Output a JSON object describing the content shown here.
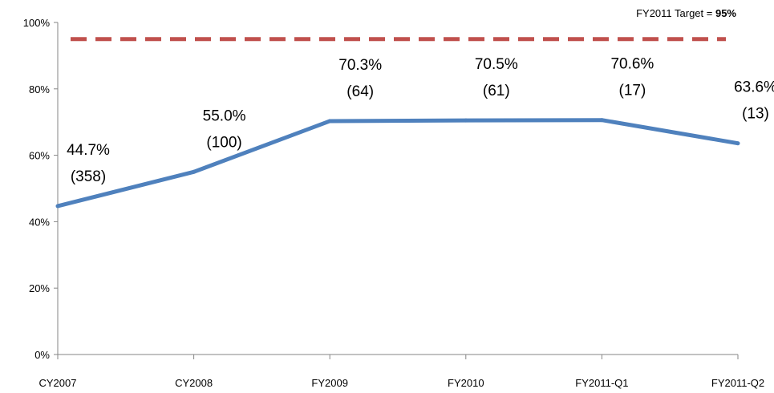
{
  "chart_data": {
    "type": "line",
    "categories": [
      "CY2007",
      "CY2008",
      "FY2009",
      "FY2010",
      "FY2011-Q1",
      "FY2011-Q2"
    ],
    "values": [
      44.7,
      55.0,
      70.3,
      70.5,
      70.6,
      63.6
    ],
    "value_labels": [
      "44.7%",
      "55.0%",
      "70.3%",
      "70.5%",
      "70.6%",
      "63.6%"
    ],
    "count_labels": [
      "(358)",
      "(100)",
      "(64)",
      "(61)",
      "(17)",
      "(13)"
    ],
    "ylim": [
      0,
      100
    ],
    "yticks": [
      0,
      20,
      40,
      60,
      80,
      100
    ],
    "ytick_labels": [
      "0%",
      "20%",
      "40%",
      "60%",
      "80%",
      "100%"
    ],
    "target": {
      "value": 95,
      "label_prefix": "FY2011 Target = ",
      "label_value": "95%"
    },
    "colors": {
      "series": "#4F81BD",
      "target": "#C0504D",
      "axis": "#868686"
    },
    "grid": false,
    "legend": "none"
  }
}
